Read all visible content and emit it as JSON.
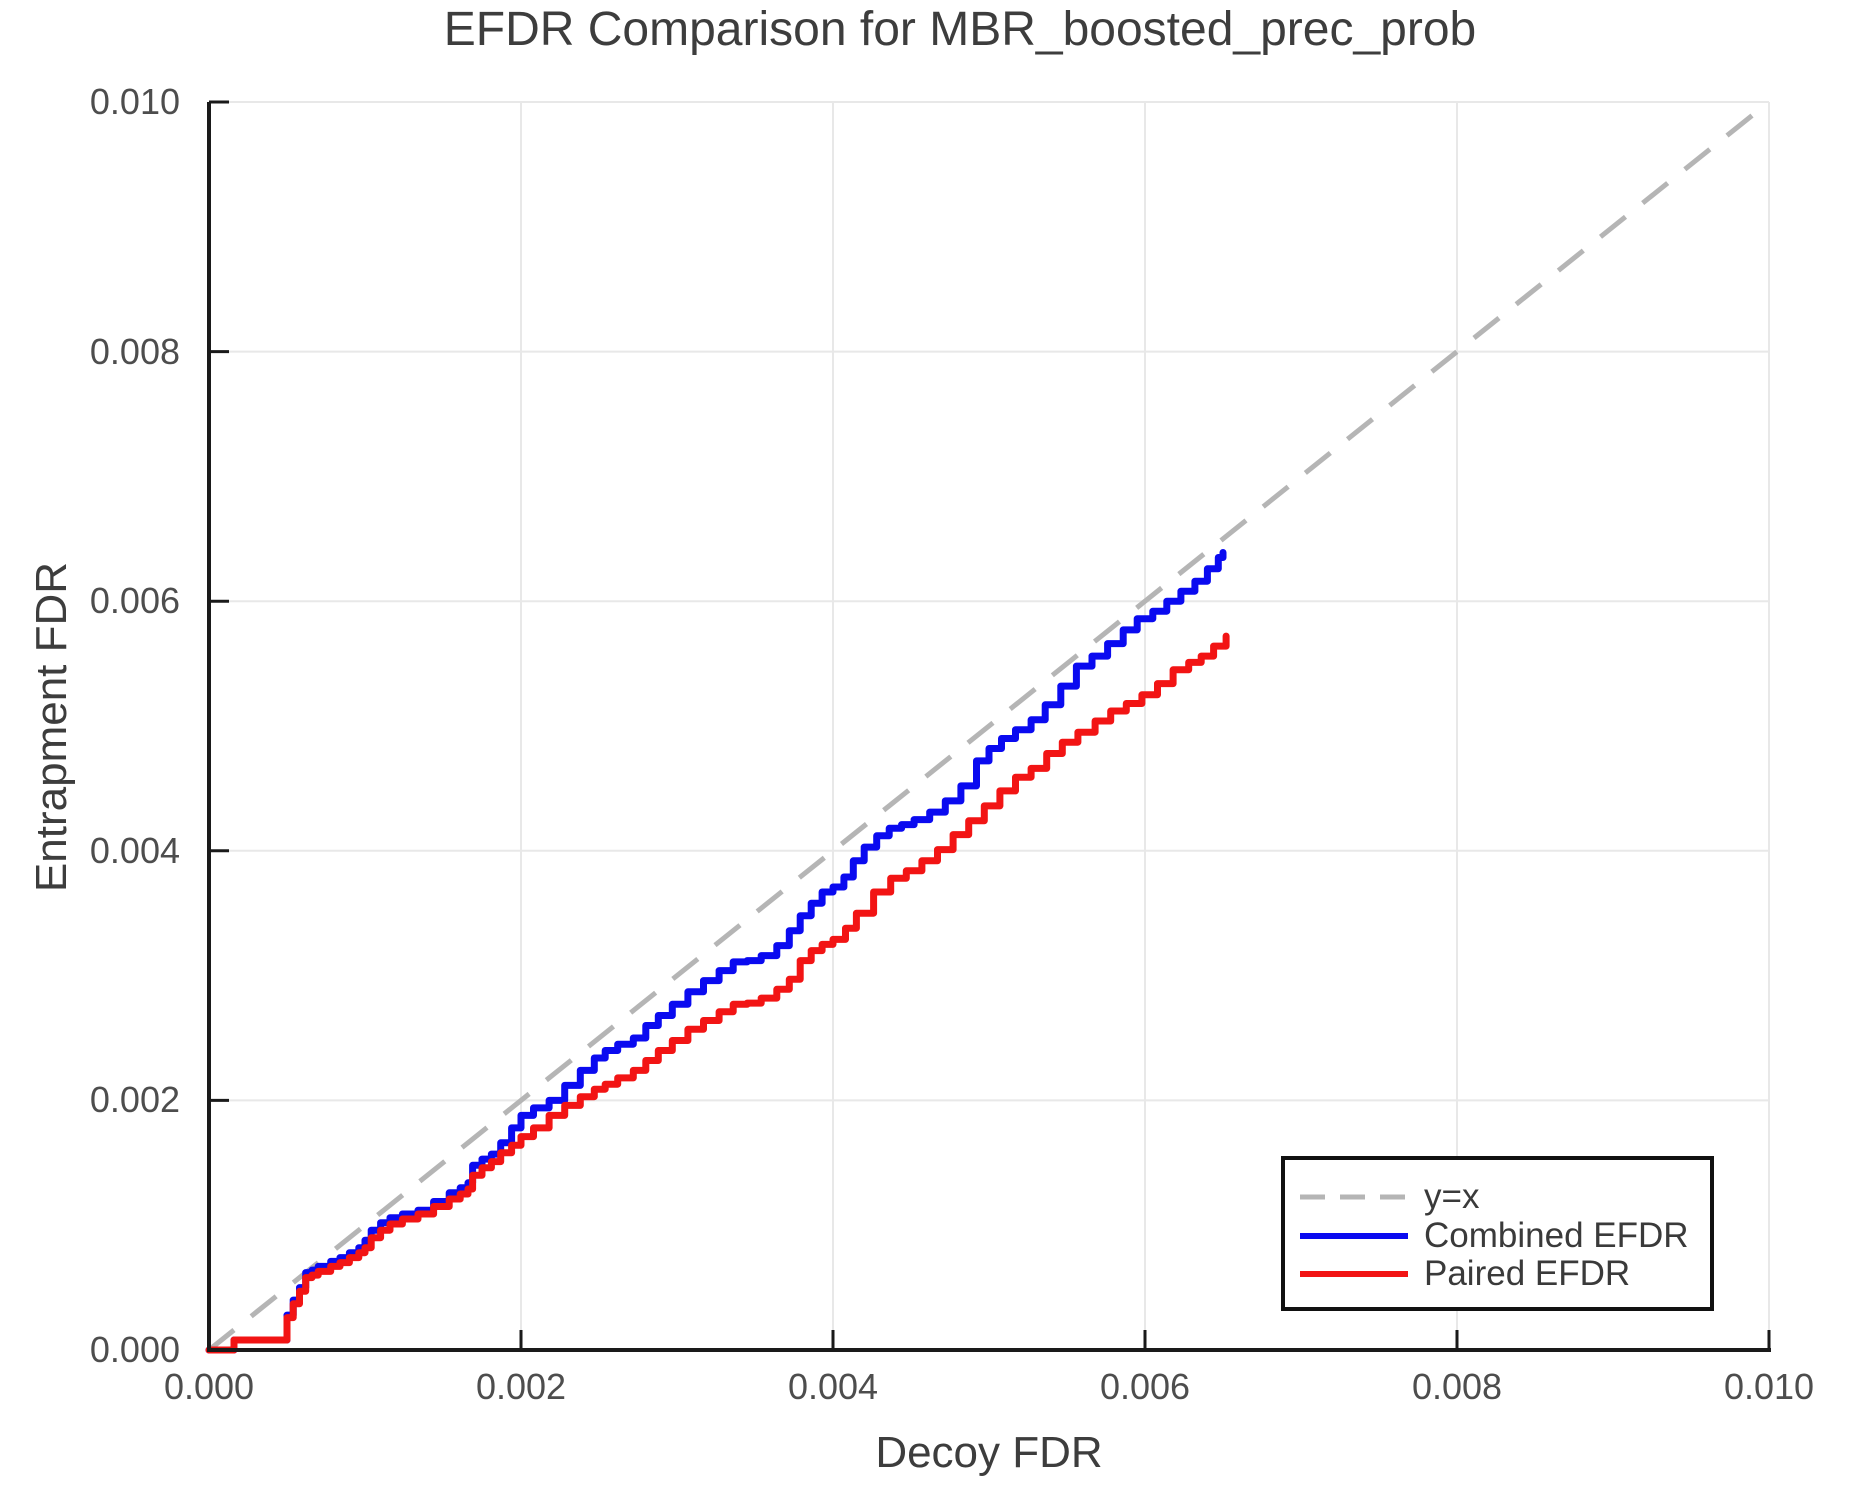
{
  "title": "EFDR Comparison for MBR_boosted_prec_prob",
  "chart_data": {
    "type": "line",
    "title": "EFDR Comparison for MBR_boosted_prec_prob",
    "xlabel": "Decoy FDR",
    "ylabel": "Entrapment FDR",
    "xlim": [
      0.0,
      0.01
    ],
    "ylim": [
      0.0,
      0.01
    ],
    "x_ticks": [
      0.0,
      0.002,
      0.004,
      0.006,
      0.008,
      0.01
    ],
    "x_tick_labels": [
      "0.000",
      "0.002",
      "0.004",
      "0.006",
      "0.008",
      "0.010"
    ],
    "y_ticks": [
      0.0,
      0.002,
      0.004,
      0.006,
      0.008,
      0.01
    ],
    "y_tick_labels": [
      "0.000",
      "0.002",
      "0.004",
      "0.006",
      "0.008",
      "0.010"
    ],
    "grid": true,
    "grid_color": "#e8e8e8",
    "spine_color": "#1a1a1a",
    "legend_position": "lower right",
    "reference_line": {
      "label": "y=x",
      "style": "dashed",
      "color": "#b5b5b5",
      "from": [
        0.0,
        0.0
      ],
      "to": [
        0.01,
        0.01
      ]
    },
    "series": [
      {
        "name": "Combined EFDR",
        "color": "#0a0af0",
        "points": [
          [
            0.0,
            0.0
          ],
          [
            0.00015,
            0.0
          ],
          [
            0.00016,
            8e-05
          ],
          [
            0.00047,
            8e-05
          ],
          [
            0.0005,
            0.00028
          ],
          [
            0.00054,
            0.0004
          ],
          [
            0.00058,
            0.0005
          ],
          [
            0.00062,
            0.00062
          ],
          [
            0.00066,
            0.00064
          ],
          [
            0.0007,
            0.00067
          ],
          [
            0.00078,
            0.00071
          ],
          [
            0.00084,
            0.00074
          ],
          [
            0.0009,
            0.00078
          ],
          [
            0.00096,
            0.00082
          ],
          [
            0.001,
            0.00088
          ],
          [
            0.00104,
            0.00096
          ],
          [
            0.0011,
            0.00102
          ],
          [
            0.00116,
            0.00106
          ],
          [
            0.00124,
            0.00109
          ],
          [
            0.00134,
            0.00112
          ],
          [
            0.00144,
            0.00119
          ],
          [
            0.00154,
            0.00126
          ],
          [
            0.00161,
            0.0013
          ],
          [
            0.00166,
            0.00134
          ],
          [
            0.00169,
            0.00148
          ],
          [
            0.00175,
            0.00153
          ],
          [
            0.00181,
            0.00157
          ],
          [
            0.00187,
            0.00166
          ],
          [
            0.00194,
            0.00178
          ],
          [
            0.002,
            0.00188
          ],
          [
            0.00208,
            0.00194
          ],
          [
            0.00218,
            0.002
          ],
          [
            0.00228,
            0.00212
          ],
          [
            0.00238,
            0.00224
          ],
          [
            0.00247,
            0.00234
          ],
          [
            0.00254,
            0.0024
          ],
          [
            0.00262,
            0.00245
          ],
          [
            0.00272,
            0.0025
          ],
          [
            0.0028,
            0.0026
          ],
          [
            0.00288,
            0.00268
          ],
          [
            0.00297,
            0.00277
          ],
          [
            0.00307,
            0.00287
          ],
          [
            0.00317,
            0.00296
          ],
          [
            0.00327,
            0.00304
          ],
          [
            0.00336,
            0.00311
          ],
          [
            0.00345,
            0.00312
          ],
          [
            0.00354,
            0.00316
          ],
          [
            0.00364,
            0.00324
          ],
          [
            0.00372,
            0.00336
          ],
          [
            0.00379,
            0.00348
          ],
          [
            0.00386,
            0.00358
          ],
          [
            0.00393,
            0.00367
          ],
          [
            0.004,
            0.00371
          ],
          [
            0.00407,
            0.00379
          ],
          [
            0.00413,
            0.00392
          ],
          [
            0.0042,
            0.00403
          ],
          [
            0.00428,
            0.00412
          ],
          [
            0.00436,
            0.00418
          ],
          [
            0.00444,
            0.00421
          ],
          [
            0.00452,
            0.00425
          ],
          [
            0.00462,
            0.00431
          ],
          [
            0.00472,
            0.0044
          ],
          [
            0.00482,
            0.00452
          ],
          [
            0.00492,
            0.00472
          ],
          [
            0.005,
            0.00482
          ],
          [
            0.00508,
            0.0049
          ],
          [
            0.00517,
            0.00497
          ],
          [
            0.00527,
            0.00505
          ],
          [
            0.00536,
            0.00517
          ],
          [
            0.00546,
            0.00532
          ],
          [
            0.00556,
            0.00548
          ],
          [
            0.00566,
            0.00556
          ],
          [
            0.00576,
            0.00566
          ],
          [
            0.00586,
            0.00577
          ],
          [
            0.00595,
            0.00586
          ],
          [
            0.00605,
            0.00592
          ],
          [
            0.00614,
            0.006
          ],
          [
            0.00623,
            0.00608
          ],
          [
            0.00632,
            0.00616
          ],
          [
            0.0064,
            0.00626
          ],
          [
            0.00647,
            0.00635
          ],
          [
            0.0065,
            0.00639
          ]
        ]
      },
      {
        "name": "Paired EFDR",
        "color": "#f21414",
        "points": [
          [
            0.0,
            0.0
          ],
          [
            0.00015,
            0.0
          ],
          [
            0.00016,
            8e-05
          ],
          [
            0.00047,
            8e-05
          ],
          [
            0.0005,
            0.00026
          ],
          [
            0.00054,
            0.00037
          ],
          [
            0.00058,
            0.00047
          ],
          [
            0.00062,
            0.00058
          ],
          [
            0.00066,
            0.0006
          ],
          [
            0.0007,
            0.00063
          ],
          [
            0.00078,
            0.00067
          ],
          [
            0.00084,
            0.0007
          ],
          [
            0.0009,
            0.00074
          ],
          [
            0.00096,
            0.00078
          ],
          [
            0.001,
            0.00082
          ],
          [
            0.00104,
            0.0009
          ],
          [
            0.0011,
            0.00096
          ],
          [
            0.00116,
            0.00101
          ],
          [
            0.00124,
            0.00105
          ],
          [
            0.00134,
            0.00109
          ],
          [
            0.00144,
            0.00115
          ],
          [
            0.00154,
            0.00121
          ],
          [
            0.00161,
            0.00125
          ],
          [
            0.00166,
            0.00129
          ],
          [
            0.00169,
            0.0014
          ],
          [
            0.00175,
            0.00146
          ],
          [
            0.00181,
            0.00151
          ],
          [
            0.00187,
            0.00158
          ],
          [
            0.00194,
            0.00164
          ],
          [
            0.002,
            0.00171
          ],
          [
            0.00208,
            0.00178
          ],
          [
            0.00218,
            0.00188
          ],
          [
            0.00228,
            0.00196
          ],
          [
            0.00238,
            0.00203
          ],
          [
            0.00247,
            0.00209
          ],
          [
            0.00254,
            0.00213
          ],
          [
            0.00262,
            0.00218
          ],
          [
            0.00272,
            0.00224
          ],
          [
            0.0028,
            0.00232
          ],
          [
            0.00288,
            0.0024
          ],
          [
            0.00297,
            0.00248
          ],
          [
            0.00307,
            0.00257
          ],
          [
            0.00317,
            0.00264
          ],
          [
            0.00327,
            0.00271
          ],
          [
            0.00336,
            0.00277
          ],
          [
            0.00345,
            0.00278
          ],
          [
            0.00354,
            0.00282
          ],
          [
            0.00364,
            0.00289
          ],
          [
            0.00372,
            0.00297
          ],
          [
            0.00379,
            0.00312
          ],
          [
            0.00386,
            0.0032
          ],
          [
            0.00393,
            0.00325
          ],
          [
            0.004,
            0.00329
          ],
          [
            0.00408,
            0.00338
          ],
          [
            0.00415,
            0.0035
          ],
          [
            0.00426,
            0.00367
          ],
          [
            0.00437,
            0.00378
          ],
          [
            0.00447,
            0.00384
          ],
          [
            0.00457,
            0.00392
          ],
          [
            0.00467,
            0.00401
          ],
          [
            0.00477,
            0.00413
          ],
          [
            0.00487,
            0.00424
          ],
          [
            0.00497,
            0.00436
          ],
          [
            0.00507,
            0.00448
          ],
          [
            0.00517,
            0.00459
          ],
          [
            0.00527,
            0.00466
          ],
          [
            0.00537,
            0.00478
          ],
          [
            0.00547,
            0.00487
          ],
          [
            0.00557,
            0.00495
          ],
          [
            0.00568,
            0.00504
          ],
          [
            0.00578,
            0.00512
          ],
          [
            0.00588,
            0.00518
          ],
          [
            0.00598,
            0.00525
          ],
          [
            0.00608,
            0.00534
          ],
          [
            0.00618,
            0.00545
          ],
          [
            0.00628,
            0.00551
          ],
          [
            0.00636,
            0.00556
          ],
          [
            0.00644,
            0.00564
          ],
          [
            0.00652,
            0.00572
          ]
        ]
      }
    ]
  }
}
